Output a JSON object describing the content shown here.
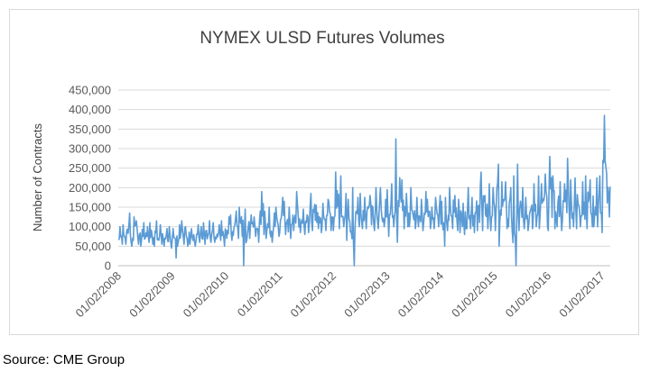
{
  "source_note": "Source: CME Group",
  "colors": {
    "series": "#5b9bd5",
    "grid": "#d9d9d9",
    "text": "#595959",
    "title": "#404040"
  },
  "chart_data": {
    "type": "line",
    "title": "NYMEX ULSD Futures Volumes",
    "xlabel": "",
    "ylabel": "Number of Contracts",
    "xlim": [
      "01/02/2008",
      "02/28/2017"
    ],
    "ylim": [
      0,
      450000
    ],
    "yticks": [
      0,
      50000,
      100000,
      150000,
      200000,
      250000,
      300000,
      350000,
      400000,
      450000
    ],
    "ytick_labels": [
      "0",
      "50,000",
      "100,000",
      "150,000",
      "200,000",
      "250,000",
      "300,000",
      "350,000",
      "400,000",
      "450,000"
    ],
    "xticks": [
      "01/02/2008",
      "01/02/2009",
      "01/02/2010",
      "01/02/2011",
      "01/02/2012",
      "01/02/2013",
      "01/02/2014",
      "01/02/2015",
      "01/02/2016",
      "01/02/2017"
    ],
    "grid": true,
    "legend": "none",
    "series": [
      {
        "x": [
          "2008-01",
          "2008-02",
          "2008-03",
          "2008-04",
          "2008-05",
          "2008-06",
          "2008-07",
          "2008-08",
          "2008-09",
          "2008-10",
          "2008-11",
          "2008-12",
          "2009-01",
          "2009-02",
          "2009-03",
          "2009-04",
          "2009-05",
          "2009-06",
          "2009-07",
          "2009-08",
          "2009-09",
          "2009-10",
          "2009-11",
          "2009-12",
          "2010-01",
          "2010-02",
          "2010-03",
          "2010-04",
          "2010-05",
          "2010-06",
          "2010-07",
          "2010-08",
          "2010-09",
          "2010-10",
          "2010-11",
          "2010-12",
          "2011-01",
          "2011-02",
          "2011-03",
          "2011-04",
          "2011-05",
          "2011-06",
          "2011-07",
          "2011-08",
          "2011-09",
          "2011-10",
          "2011-11",
          "2011-12",
          "2012-01",
          "2012-02",
          "2012-03",
          "2012-04",
          "2012-05",
          "2012-06",
          "2012-07",
          "2012-08",
          "2012-09",
          "2012-10",
          "2012-11",
          "2012-12",
          "2013-01",
          "2013-02",
          "2013-03",
          "2013-04",
          "2013-05",
          "2013-06",
          "2013-07",
          "2013-08",
          "2013-09",
          "2013-10",
          "2013-11",
          "2013-12",
          "2014-01",
          "2014-02",
          "2014-03",
          "2014-04",
          "2014-05",
          "2014-06",
          "2014-07",
          "2014-08",
          "2014-09",
          "2014-10",
          "2014-11",
          "2014-12",
          "2015-01",
          "2015-02",
          "2015-03",
          "2015-04",
          "2015-05",
          "2015-06",
          "2015-07",
          "2015-08",
          "2015-09",
          "2015-10",
          "2015-11",
          "2015-12",
          "2016-01",
          "2016-02",
          "2016-03",
          "2016-04",
          "2016-05",
          "2016-06",
          "2016-07",
          "2016-08",
          "2016-09",
          "2016-10",
          "2016-11",
          "2016-12",
          "2017-01",
          "2017-02"
        ],
        "high": [
          100000,
          105000,
          135000,
          125000,
          115000,
          110000,
          100000,
          110000,
          115000,
          105000,
          95000,
          100000,
          95000,
          105000,
          115000,
          100000,
          95000,
          105000,
          100000,
          110000,
          115000,
          110000,
          105000,
          115000,
          125000,
          130000,
          140000,
          150000,
          145000,
          130000,
          125000,
          140000,
          190000,
          150000,
          135000,
          150000,
          175000,
          165000,
          150000,
          190000,
          160000,
          145000,
          150000,
          185000,
          155000,
          160000,
          170000,
          165000,
          240000,
          230000,
          185000,
          170000,
          200000,
          175000,
          185000,
          175000,
          180000,
          200000,
          200000,
          170000,
          195000,
          210000,
          325000,
          220000,
          185000,
          200000,
          175000,
          170000,
          190000,
          170000,
          175000,
          180000,
          165000,
          175000,
          200000,
          180000,
          170000,
          160000,
          200000,
          175000,
          205000,
          240000,
          210000,
          200000,
          260000,
          215000,
          215000,
          200000,
          230000,
          260000,
          200000,
          175000,
          210000,
          230000,
          210000,
          235000,
          280000,
          230000,
          215000,
          210000,
          275000,
          220000,
          225000,
          215000,
          230000,
          220000,
          225000,
          230000,
          385000,
          235000
        ],
        "low": [
          55000,
          55000,
          60000,
          50000,
          55000,
          50000,
          60000,
          55000,
          50000,
          55000,
          50000,
          45000,
          20000,
          50000,
          55000,
          50000,
          55000,
          50000,
          60000,
          55000,
          60000,
          60000,
          65000,
          50000,
          70000,
          65000,
          70000,
          75000,
          0,
          70000,
          75000,
          60000,
          80000,
          70000,
          60000,
          75000,
          85000,
          80000,
          70000,
          90000,
          85000,
          80000,
          85000,
          90000,
          95000,
          85000,
          90000,
          90000,
          90000,
          95000,
          100000,
          65000,
          0,
          100000,
          95000,
          95000,
          105000,
          90000,
          95000,
          100000,
          75000,
          100000,
          60000,
          95000,
          100000,
          100000,
          95000,
          100000,
          90000,
          95000,
          95000,
          100000,
          50000,
          90000,
          95000,
          90000,
          85000,
          80000,
          95000,
          85000,
          90000,
          90000,
          95000,
          90000,
          90000,
          50000,
          95000,
          100000,
          0,
          90000,
          95000,
          90000,
          95000,
          100000,
          95000,
          100000,
          90000,
          95000,
          100000,
          90000,
          95000,
          100000,
          95000,
          100000,
          95000,
          100000,
          100000,
          100000,
          85000,
          125000
        ]
      }
    ]
  }
}
